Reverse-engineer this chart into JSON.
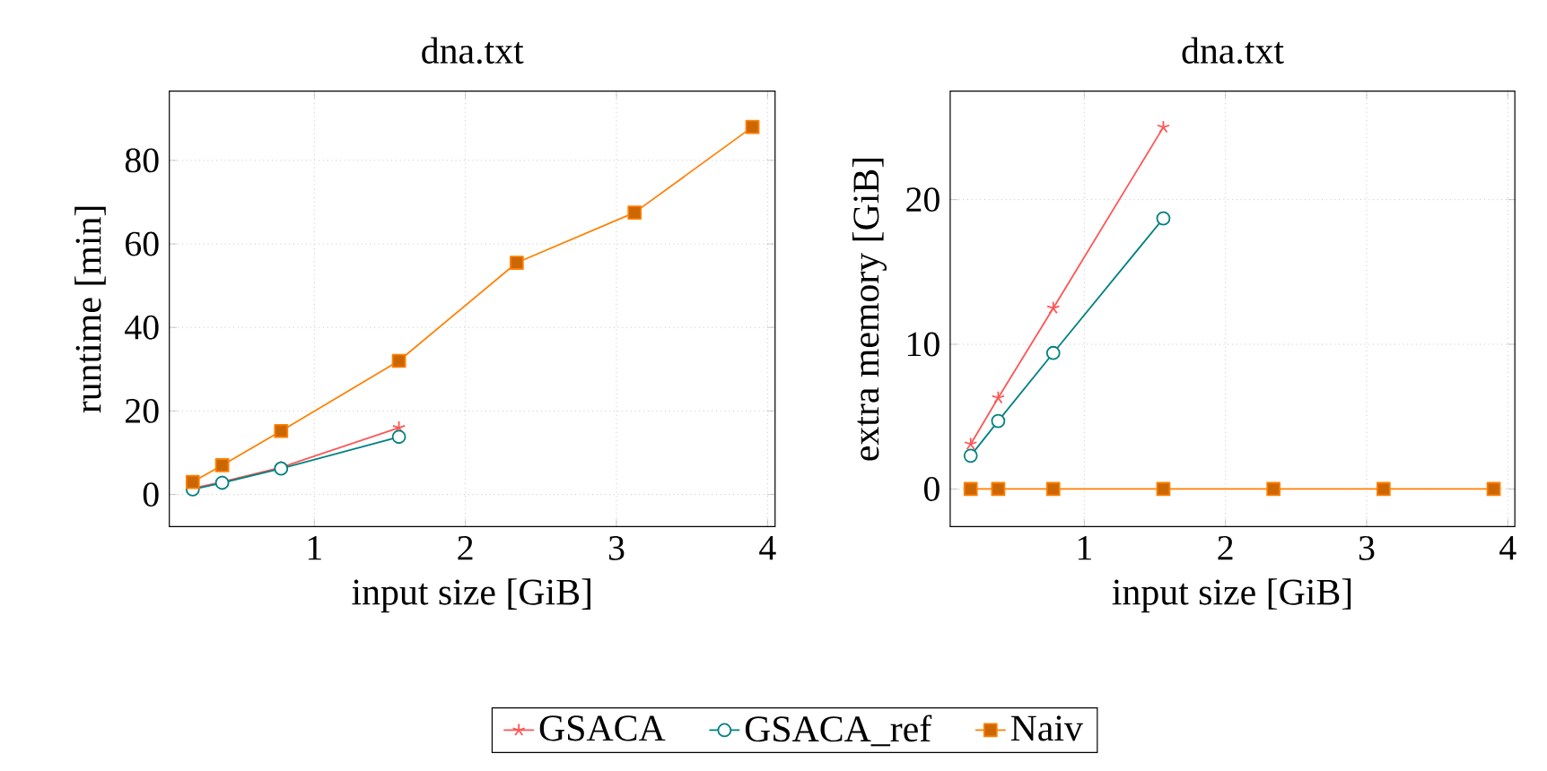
{
  "chart_data": [
    {
      "type": "line",
      "title": "dna.txt",
      "xlabel": "input size [GiB]",
      "ylabel": "runtime [min]",
      "xlim": [
        0.04,
        4.05
      ],
      "ylim": [
        -7.7,
        96.6
      ],
      "xticks": [
        1,
        2,
        3,
        4
      ],
      "yticks": [
        0,
        20,
        40,
        60,
        80
      ],
      "grid": true,
      "legend": "bottom",
      "series": [
        {
          "name": "GSACA",
          "color": "#ff5555",
          "marker": "cross",
          "x": [
            0.195,
            0.39,
            0.78,
            1.56
          ],
          "values": [
            1.5,
            3,
            6.5,
            16
          ]
        },
        {
          "name": "GSACA_ref",
          "color": "#008080",
          "marker": "circle",
          "x": [
            0.195,
            0.39,
            0.78,
            1.56
          ],
          "values": [
            1.2,
            2.8,
            6.2,
            13.8
          ]
        },
        {
          "name": "Naiv",
          "color": "#ff8000",
          "marker": "square",
          "x": [
            0.195,
            0.39,
            0.78,
            1.56,
            2.34,
            3.12,
            3.9
          ],
          "values": [
            3,
            7,
            15.2,
            32,
            55.5,
            67.5,
            88
          ]
        }
      ]
    },
    {
      "type": "line",
      "title": "dna.txt",
      "xlabel": "input size [GiB]",
      "ylabel": "extra memory [GiB]",
      "xlim": [
        0.05,
        4.05
      ],
      "ylim": [
        -2.6,
        27.5
      ],
      "xticks": [
        1,
        2,
        3,
        4
      ],
      "yticks": [
        0,
        10,
        20
      ],
      "grid": true,
      "series": [
        {
          "color": "#ff5555",
          "marker": "cross",
          "x": [
            0.195,
            0.39,
            0.78,
            1.56
          ],
          "values": [
            3.1,
            6.3,
            12.5,
            25
          ]
        },
        {
          "color": "#008080",
          "marker": "circle",
          "x": [
            0.195,
            0.39,
            0.78,
            1.56
          ],
          "values": [
            2.3,
            4.7,
            9.4,
            18.7
          ]
        },
        {
          "color": "#ff8000",
          "marker": "square",
          "x": [
            0.195,
            0.39,
            0.78,
            1.56,
            2.34,
            3.12,
            3.9
          ],
          "values": [
            0,
            0,
            0,
            0,
            0,
            0,
            0
          ]
        }
      ]
    }
  ]
}
